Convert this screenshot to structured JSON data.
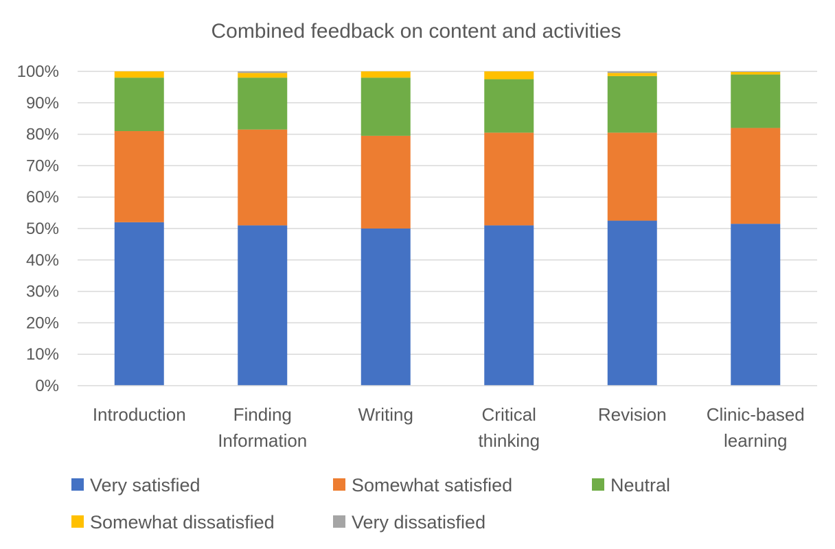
{
  "chart_data": {
    "type": "bar",
    "stacked": true,
    "title": "Combined feedback on content and activities",
    "xlabel": "",
    "ylabel": "",
    "ylim": [
      0,
      100
    ],
    "y_ticks": [
      "0%",
      "10%",
      "20%",
      "30%",
      "40%",
      "50%",
      "60%",
      "70%",
      "80%",
      "90%",
      "100%"
    ],
    "categories": [
      [
        "Introduction"
      ],
      [
        "Finding",
        "Information"
      ],
      [
        "Writing"
      ],
      [
        "Critical",
        "thinking"
      ],
      [
        "Revision"
      ],
      [
        "Clinic-based",
        "learning"
      ]
    ],
    "series": [
      {
        "name": "Very satisfied",
        "color": "#4472c4",
        "values": [
          52,
          51,
          50,
          51,
          52.5,
          51.5
        ]
      },
      {
        "name": "Somewhat satisfied",
        "color": "#ed7d31",
        "values": [
          29,
          30.5,
          29.5,
          29.5,
          28,
          30.5
        ]
      },
      {
        "name": "Neutral",
        "color": "#70ad47",
        "values": [
          17,
          16.5,
          18.5,
          17,
          18,
          17
        ]
      },
      {
        "name": "Somewhat dissatisfied",
        "color": "#ffc000",
        "values": [
          2,
          1.5,
          2,
          2.5,
          1,
          0.8
        ]
      },
      {
        "name": "Very dissatisfied",
        "color": "#a5a5a5",
        "values": [
          0,
          0.5,
          0,
          0,
          0.5,
          0.2
        ]
      }
    ],
    "grid": true,
    "legend_position": "bottom"
  }
}
